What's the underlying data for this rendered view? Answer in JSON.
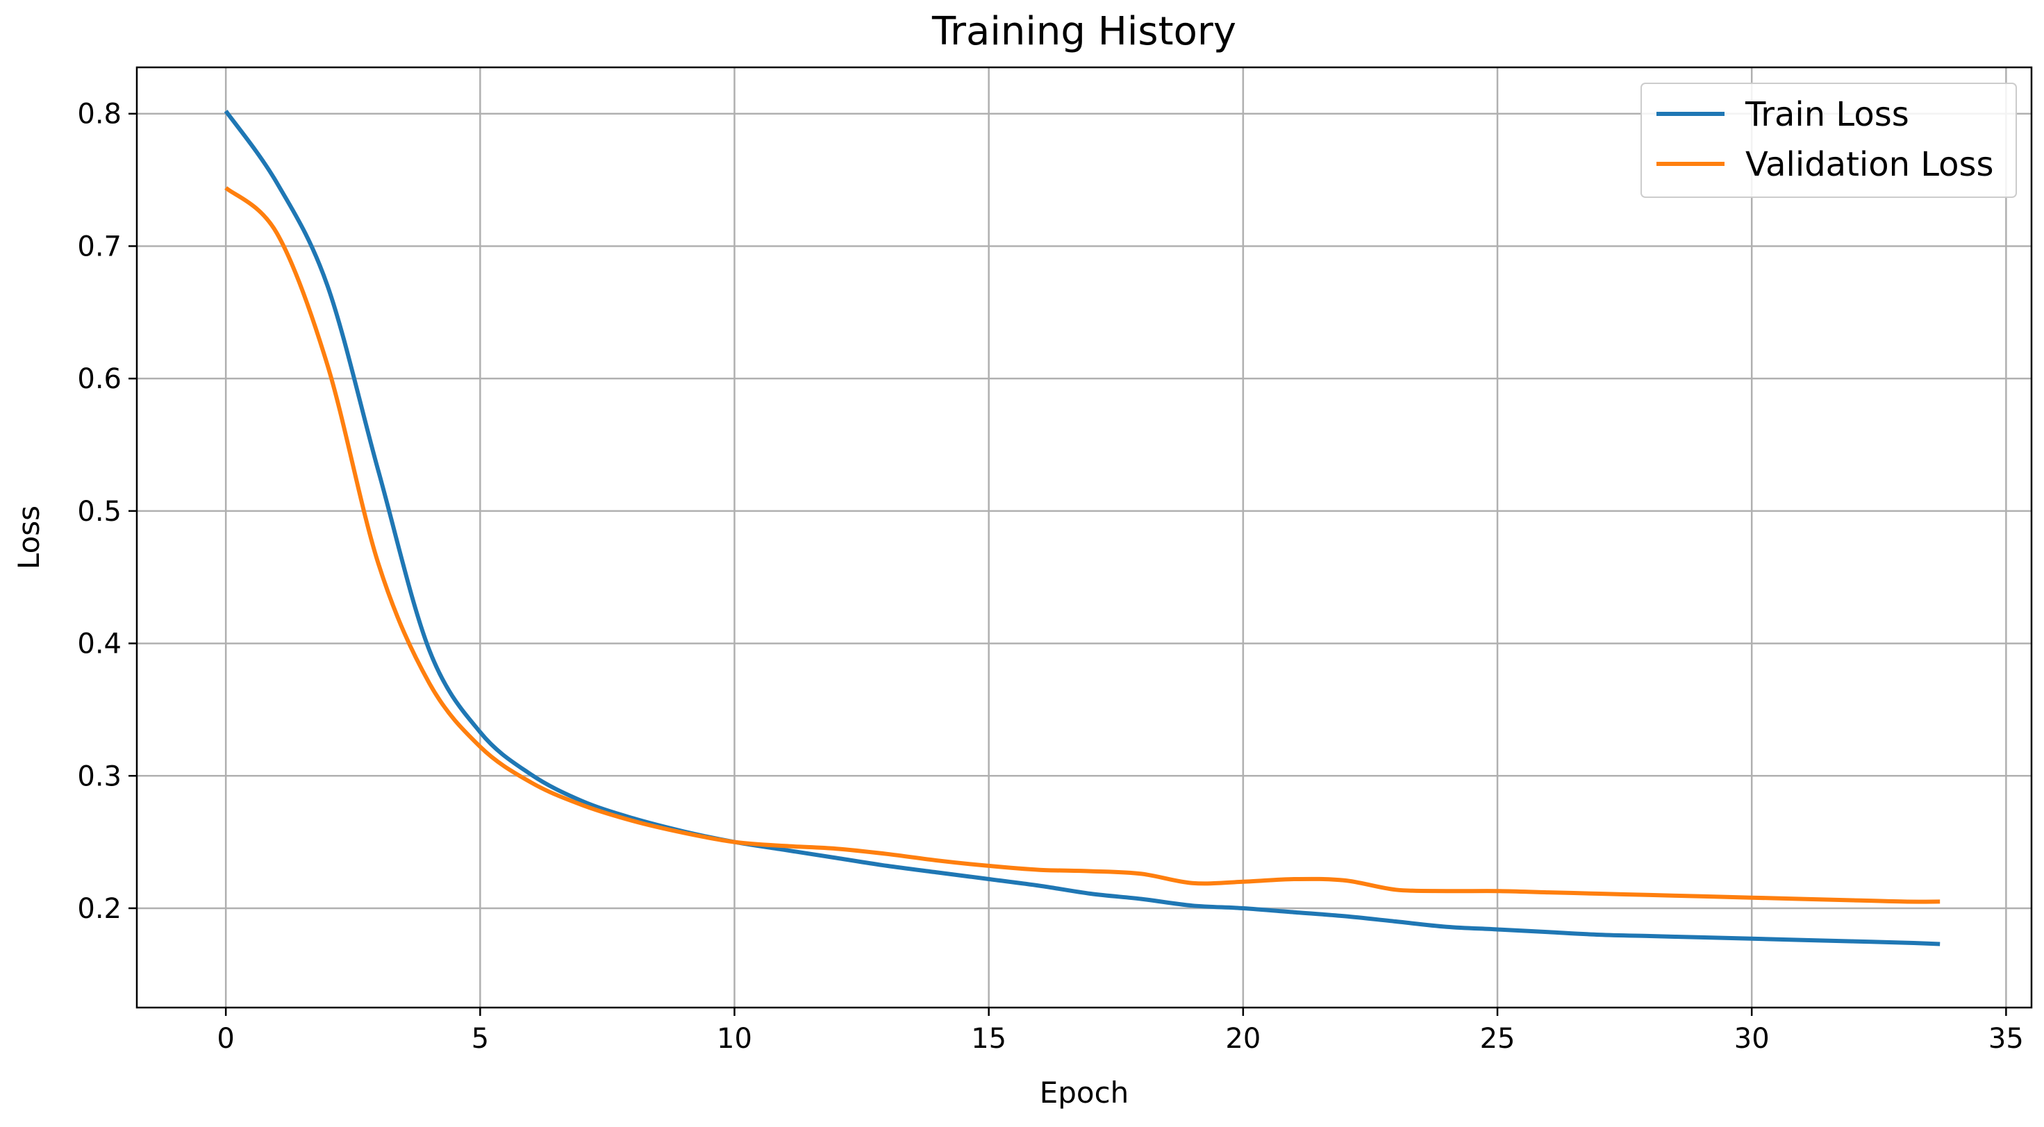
{
  "chart_data": {
    "type": "line",
    "title": "Training History",
    "xlabel": "Epoch",
    "ylabel": "Loss",
    "xlim": [
      -1.75,
      35.5
    ],
    "ylim": [
      0.125,
      0.835
    ],
    "xticks": [
      "0",
      "5",
      "10",
      "15",
      "20",
      "25",
      "30",
      "35"
    ],
    "yticks": [
      "0.2",
      "0.3",
      "0.4",
      "0.5",
      "0.6",
      "0.7",
      "0.8"
    ],
    "grid": true,
    "legend_position": "top-right",
    "x": [
      0,
      1,
      2,
      3,
      4,
      5,
      6,
      7,
      8,
      9,
      10,
      11,
      12,
      13,
      14,
      15,
      16,
      17,
      18,
      19,
      20,
      21,
      22,
      23,
      24,
      25,
      26,
      27,
      28,
      29,
      30,
      31,
      32,
      33,
      33.7
    ],
    "series": [
      {
        "name": "Train Loss",
        "color": "#1f77b4",
        "values": [
          0.802,
          0.748,
          0.67,
          0.53,
          0.395,
          0.333,
          0.301,
          0.281,
          0.268,
          0.258,
          0.25,
          0.244,
          0.238,
          0.232,
          0.227,
          0.222,
          0.217,
          0.211,
          0.207,
          0.202,
          0.2,
          0.197,
          0.194,
          0.19,
          0.186,
          0.184,
          0.182,
          0.18,
          0.179,
          0.178,
          0.177,
          0.176,
          0.175,
          0.174,
          0.173
        ]
      },
      {
        "name": "Validation Loss",
        "color": "#ff7f0e",
        "values": [
          0.744,
          0.71,
          0.61,
          0.46,
          0.37,
          0.322,
          0.295,
          0.278,
          0.266,
          0.257,
          0.25,
          0.247,
          0.245,
          0.241,
          0.236,
          0.232,
          0.229,
          0.228,
          0.226,
          0.219,
          0.22,
          0.222,
          0.221,
          0.214,
          0.213,
          0.213,
          0.212,
          0.211,
          0.21,
          0.209,
          0.208,
          0.207,
          0.206,
          0.205,
          0.205
        ]
      }
    ]
  }
}
